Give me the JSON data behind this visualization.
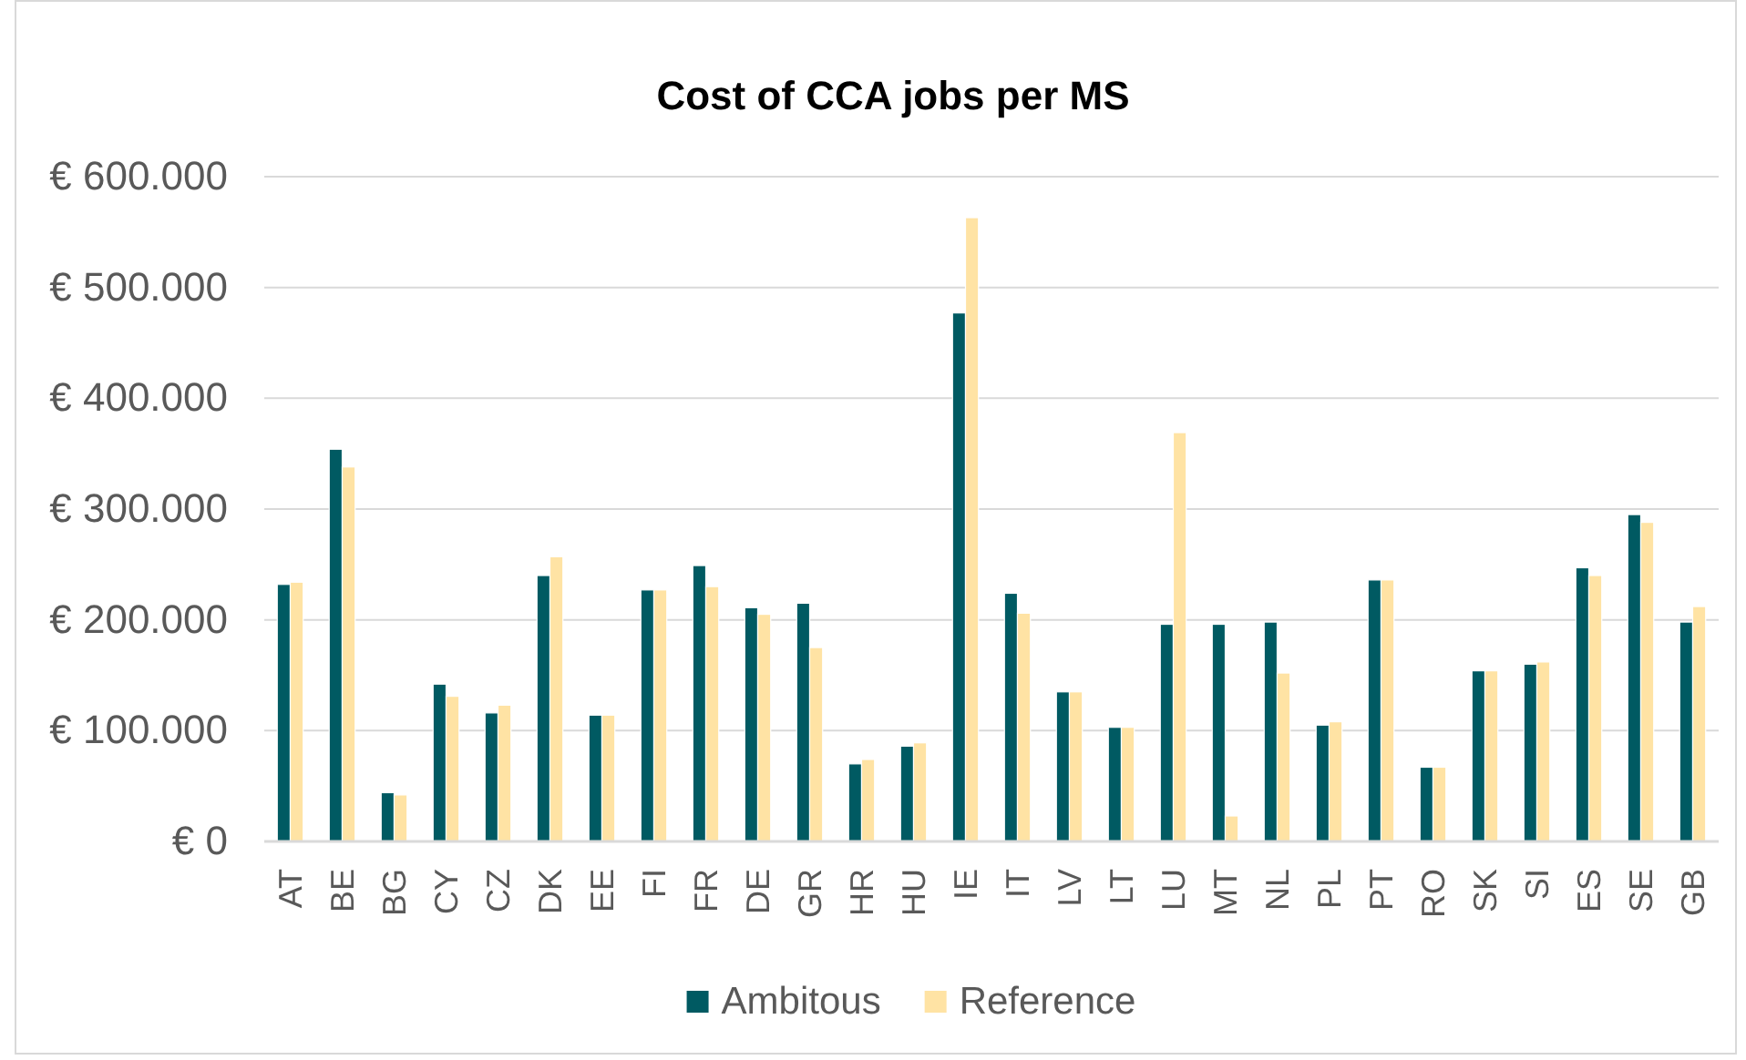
{
  "chart_data": {
    "type": "bar",
    "title": "Cost of CCA jobs per MS",
    "categories": [
      "AT",
      "BE",
      "BG",
      "CY",
      "CZ",
      "DK",
      "EE",
      "FI",
      "FR",
      "DE",
      "GR",
      "HR",
      "HU",
      "IE",
      "IT",
      "LV",
      "LT",
      "LU",
      "MT",
      "NL",
      "PL",
      "PT",
      "RO",
      "SK",
      "SI",
      "ES",
      "SE",
      "GB"
    ],
    "series": [
      {
        "name": "Ambitous",
        "color": "#005a62",
        "values": [
          232000,
          354000,
          44000,
          142000,
          116000,
          240000,
          114000,
          227000,
          249000,
          211000,
          215000,
          70000,
          86000,
          477000,
          224000,
          135000,
          103000,
          196000,
          196000,
          198000,
          105000,
          236000,
          67000,
          154000,
          160000,
          247000,
          295000,
          198000
        ]
      },
      {
        "name": "Reference",
        "color": "#ffe3a4",
        "values": [
          234000,
          338000,
          42000,
          131000,
          123000,
          257000,
          114000,
          227000,
          230000,
          205000,
          175000,
          74000,
          89000,
          563000,
          206000,
          135000,
          103000,
          369000,
          23000,
          152000,
          108000,
          236000,
          67000,
          154000,
          162000,
          240000,
          288000,
          212000
        ]
      }
    ],
    "ylim": [
      0,
      600000
    ],
    "yticks": [
      {
        "value": 0,
        "label": "€ 0"
      },
      {
        "value": 100000,
        "label": "€ 100.000"
      },
      {
        "value": 200000,
        "label": "€ 200.000"
      },
      {
        "value": 300000,
        "label": "€ 300.000"
      },
      {
        "value": 400000,
        "label": "€ 400.000"
      },
      {
        "value": 500000,
        "label": "€ 500.000"
      },
      {
        "value": 600000,
        "label": "€ 600.000"
      }
    ],
    "grid": "y",
    "legend": "bottom"
  }
}
